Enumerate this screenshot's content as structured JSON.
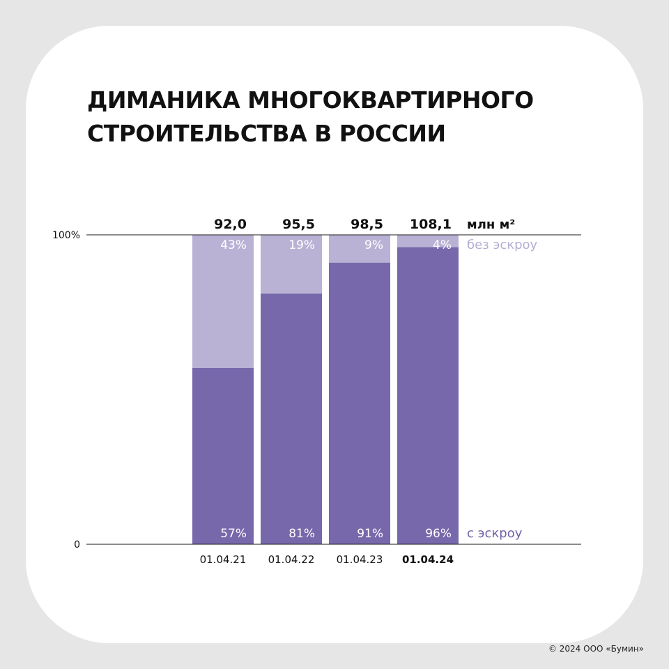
{
  "title_lines": [
    "ДИМАНИКА МНОГОКВАРТИРНОГО",
    "СТРОИТЕЛЬСТВА В РОССИИ"
  ],
  "copyright": "© 2024 ООО «Бумин»",
  "colors": {
    "background": "#e6e6e6",
    "card": "#ffffff",
    "with_escrow": "#7768ab",
    "without_escrow": "#b9b2d5",
    "text": "#111111",
    "legend_without": "#b5aed3",
    "legend_with": "#7362a8"
  },
  "chart_data": {
    "type": "bar",
    "stacked": true,
    "normalized": true,
    "categories": [
      "01.04.21",
      "01.04.22",
      "01.04.23",
      "01.04.24"
    ],
    "highlighted_category": "01.04.24",
    "totals": [
      92.0,
      95.5,
      98.5,
      108.1
    ],
    "total_labels": [
      "92,0",
      "95,5",
      "98,5",
      "108,1"
    ],
    "units_label": "млн м²",
    "series": [
      {
        "name": "с эскроу",
        "values": [
          57,
          81,
          91,
          96
        ],
        "labels": [
          "57%",
          "81%",
          "91%",
          "96%"
        ]
      },
      {
        "name": "без эскроу",
        "values": [
          43,
          19,
          9,
          4
        ],
        "labels": [
          "43%",
          "19%",
          "9%",
          "4%"
        ]
      }
    ],
    "yaxis_tick_labels": [
      "0",
      "100%"
    ],
    "ylim": [
      0,
      100
    ],
    "grid": false,
    "legend_placement": "right, inline with bars"
  }
}
